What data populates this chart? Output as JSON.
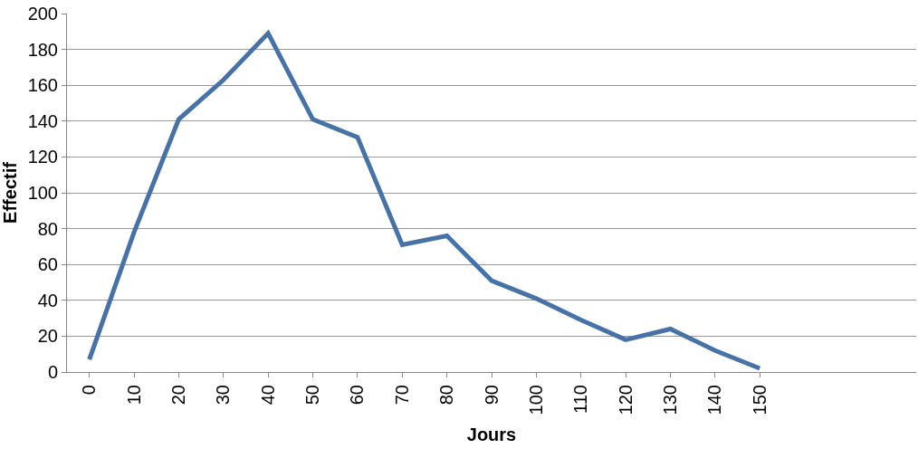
{
  "chart_data": {
    "type": "line",
    "xlabel": "Jours",
    "ylabel": "Effectif",
    "categories": [
      "0",
      "10",
      "20",
      "30",
      "40",
      "50",
      "60",
      "70",
      "80",
      "90",
      "100",
      "110",
      "120",
      "130",
      "140",
      "150",
      null,
      null,
      null
    ],
    "series": [
      {
        "color": "#4672a8",
        "values": [
          7,
          78,
          141,
          163,
          189,
          141,
          131,
          71,
          76,
          51,
          41,
          29,
          18,
          24,
          12,
          2,
          null,
          null,
          null
        ]
      }
    ],
    "ylim": [
      0,
      200
    ],
    "yticks": [
      0,
      20,
      40,
      60,
      80,
      100,
      120,
      140,
      160,
      180,
      200
    ],
    "grid": "y",
    "legend": false,
    "marker": "none",
    "line_style": "solid"
  }
}
